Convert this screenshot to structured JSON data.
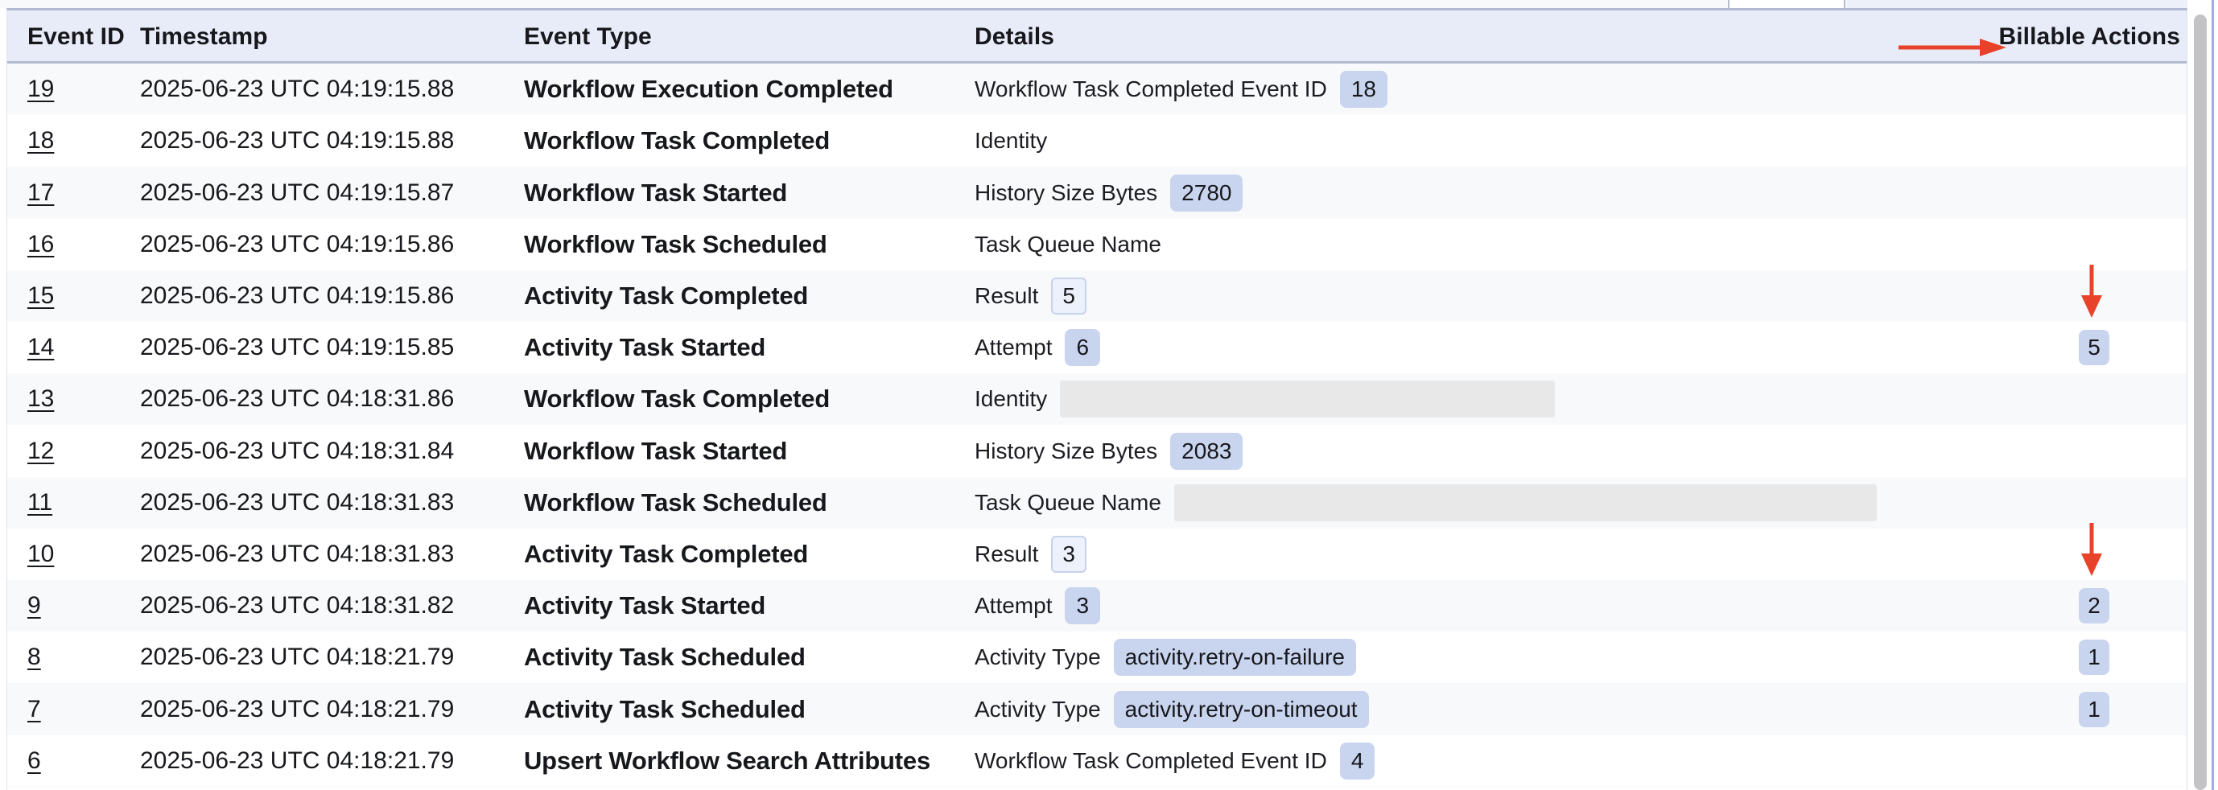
{
  "table": {
    "columns": [
      {
        "label": "Event ID"
      },
      {
        "label": "Timestamp"
      },
      {
        "label": "Event Type"
      },
      {
        "label": "Details"
      },
      {
        "label": "Billable Actions"
      }
    ],
    "rows": [
      {
        "event_id": "19",
        "timestamp": "2025-06-23 UTC 04:19:15.88",
        "event_type": "Workflow Execution Completed",
        "detail_label": "Workflow Task Completed Event ID",
        "detail_value": "18",
        "value_style": "solid",
        "billable": null,
        "billable_arrow": false
      },
      {
        "event_id": "18",
        "timestamp": "2025-06-23 UTC 04:19:15.88",
        "event_type": "Workflow Task Completed",
        "detail_label": "Identity",
        "detail_value": null,
        "value_style": "none",
        "billable": null,
        "billable_arrow": false
      },
      {
        "event_id": "17",
        "timestamp": "2025-06-23 UTC 04:19:15.87",
        "event_type": "Workflow Task Started",
        "detail_label": "History Size Bytes",
        "detail_value": "2780",
        "value_style": "solid",
        "billable": null,
        "billable_arrow": false
      },
      {
        "event_id": "16",
        "timestamp": "2025-06-23 UTC 04:19:15.86",
        "event_type": "Workflow Task Scheduled",
        "detail_label": "Task Queue Name",
        "detail_value": null,
        "value_style": "none",
        "billable": null,
        "billable_arrow": false
      },
      {
        "event_id": "15",
        "timestamp": "2025-06-23 UTC 04:19:15.86",
        "event_type": "Activity Task Completed",
        "detail_label": "Result",
        "detail_value": "5",
        "value_style": "outline",
        "billable": null,
        "billable_arrow": true
      },
      {
        "event_id": "14",
        "timestamp": "2025-06-23 UTC 04:19:15.85",
        "event_type": "Activity Task Started",
        "detail_label": "Attempt",
        "detail_value": "6",
        "value_style": "solid",
        "billable": "5",
        "billable_arrow": false
      },
      {
        "event_id": "13",
        "timestamp": "2025-06-23 UTC 04:18:31.86",
        "event_type": "Workflow Task Completed",
        "detail_label": "Identity",
        "detail_value": null,
        "value_style": "redacted",
        "redacted_width": 615,
        "billable": null,
        "billable_arrow": false
      },
      {
        "event_id": "12",
        "timestamp": "2025-06-23 UTC 04:18:31.84",
        "event_type": "Workflow Task Started",
        "detail_label": "History Size Bytes",
        "detail_value": "2083",
        "value_style": "solid",
        "billable": null,
        "billable_arrow": false
      },
      {
        "event_id": "11",
        "timestamp": "2025-06-23 UTC 04:18:31.83",
        "event_type": "Workflow Task Scheduled",
        "detail_label": "Task Queue Name",
        "detail_value": null,
        "value_style": "redacted",
        "redacted_width": 873,
        "billable": null,
        "billable_arrow": false
      },
      {
        "event_id": "10",
        "timestamp": "2025-06-23 UTC 04:18:31.83",
        "event_type": "Activity Task Completed",
        "detail_label": "Result",
        "detail_value": "3",
        "value_style": "outline",
        "billable": null,
        "billable_arrow": true
      },
      {
        "event_id": "9",
        "timestamp": "2025-06-23 UTC 04:18:31.82",
        "event_type": "Activity Task Started",
        "detail_label": "Attempt",
        "detail_value": "3",
        "value_style": "solid",
        "billable": "2",
        "billable_arrow": false
      },
      {
        "event_id": "8",
        "timestamp": "2025-06-23 UTC 04:18:21.79",
        "event_type": "Activity Task Scheduled",
        "detail_label": "Activity Type",
        "detail_value": "activity.retry-on-failure",
        "value_style": "solid",
        "billable": "1",
        "billable_arrow": false
      },
      {
        "event_id": "7",
        "timestamp": "2025-06-23 UTC 04:18:21.79",
        "event_type": "Activity Task Scheduled",
        "detail_label": "Activity Type",
        "detail_value": "activity.retry-on-timeout",
        "value_style": "solid",
        "billable": "1",
        "billable_arrow": false
      },
      {
        "event_id": "6",
        "timestamp": "2025-06-23 UTC 04:18:21.79",
        "event_type": "Upsert Workflow Search Attributes",
        "detail_label": "Workflow Task Completed Event ID",
        "detail_value": "4",
        "value_style": "solid",
        "billable": null,
        "billable_arrow": false
      }
    ]
  },
  "annotations": {
    "header_arrow_target": "Billable Actions",
    "row_arrows_point_to_billable_values": [
      "5",
      "2"
    ],
    "arrow_color": "#e8432a"
  },
  "colors": {
    "header_bg": "#e8ecf9",
    "header_border": "#b1bace",
    "row_alt_bg": "#f8f9fb",
    "badge_bg": "#c9d4ef",
    "badge_outline_bg": "#edf1fb",
    "badge_outline_border": "#c6d2ee",
    "redacted_bg": "#e8e8e8",
    "arrow_red": "#e8432a",
    "text": "#17181c"
  }
}
